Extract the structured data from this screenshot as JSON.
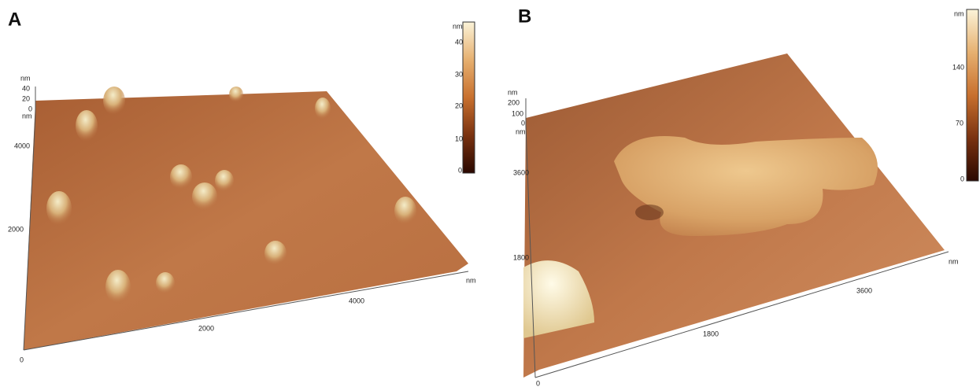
{
  "panels": [
    {
      "label": "A",
      "colorbar": {
        "unit": "nm",
        "ticks": [
          "40",
          "30",
          "20",
          "10",
          "0"
        ]
      },
      "z_axis": {
        "unit": "nm",
        "ticks": [
          "40",
          "20",
          "0"
        ]
      },
      "y_axis": {
        "unit": "nm",
        "ticks": [
          "4000",
          "2000"
        ]
      },
      "x_axis": {
        "unit": "nm",
        "ticks": [
          "0",
          "2000",
          "4000"
        ]
      }
    },
    {
      "label": "B",
      "colorbar": {
        "unit": "nm",
        "ticks": [
          "140",
          "70",
          "0"
        ]
      },
      "z_axis": {
        "unit": "nm",
        "ticks": [
          "200",
          "100",
          "0"
        ]
      },
      "y_axis": {
        "unit": "nm",
        "ticks": [
          "3600",
          "1800"
        ]
      },
      "x_axis": {
        "unit": "nm",
        "ticks": [
          "0",
          "1800",
          "3600"
        ]
      }
    }
  ]
}
